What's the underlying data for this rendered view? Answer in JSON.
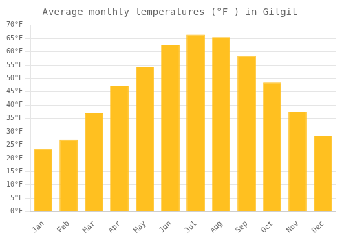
{
  "chart_data": {
    "type": "bar",
    "title": "Average monthly temperatures (°F ) in Gilgit",
    "categories": [
      "Jan",
      "Feb",
      "Mar",
      "Apr",
      "May",
      "Jun",
      "Jul",
      "Aug",
      "Sep",
      "Oct",
      "Nov",
      "Dec"
    ],
    "values": [
      23.5,
      27.0,
      37.0,
      47.0,
      54.5,
      62.5,
      66.5,
      65.5,
      58.5,
      48.5,
      37.5,
      28.5
    ],
    "color": "#FFC020",
    "ylim": [
      0,
      70
    ],
    "yticks": [
      {
        "value": 0,
        "label": "0°F"
      },
      {
        "value": 5,
        "label": "5°F"
      },
      {
        "value": 10,
        "label": "10°F"
      },
      {
        "value": 15,
        "label": "15°F"
      },
      {
        "value": 20,
        "label": "20°F"
      },
      {
        "value": 25,
        "label": "25°F"
      },
      {
        "value": 30,
        "label": "30°F"
      },
      {
        "value": 35,
        "label": "35°F"
      },
      {
        "value": 40,
        "label": "40°F"
      },
      {
        "value": 45,
        "label": "45°F"
      },
      {
        "value": 50,
        "label": "50°F"
      },
      {
        "value": 55,
        "label": "55°F"
      },
      {
        "value": 60,
        "label": "60°F"
      },
      {
        "value": 65,
        "label": "65°F"
      },
      {
        "value": 70,
        "label": "70°F"
      }
    ],
    "grid": true
  }
}
